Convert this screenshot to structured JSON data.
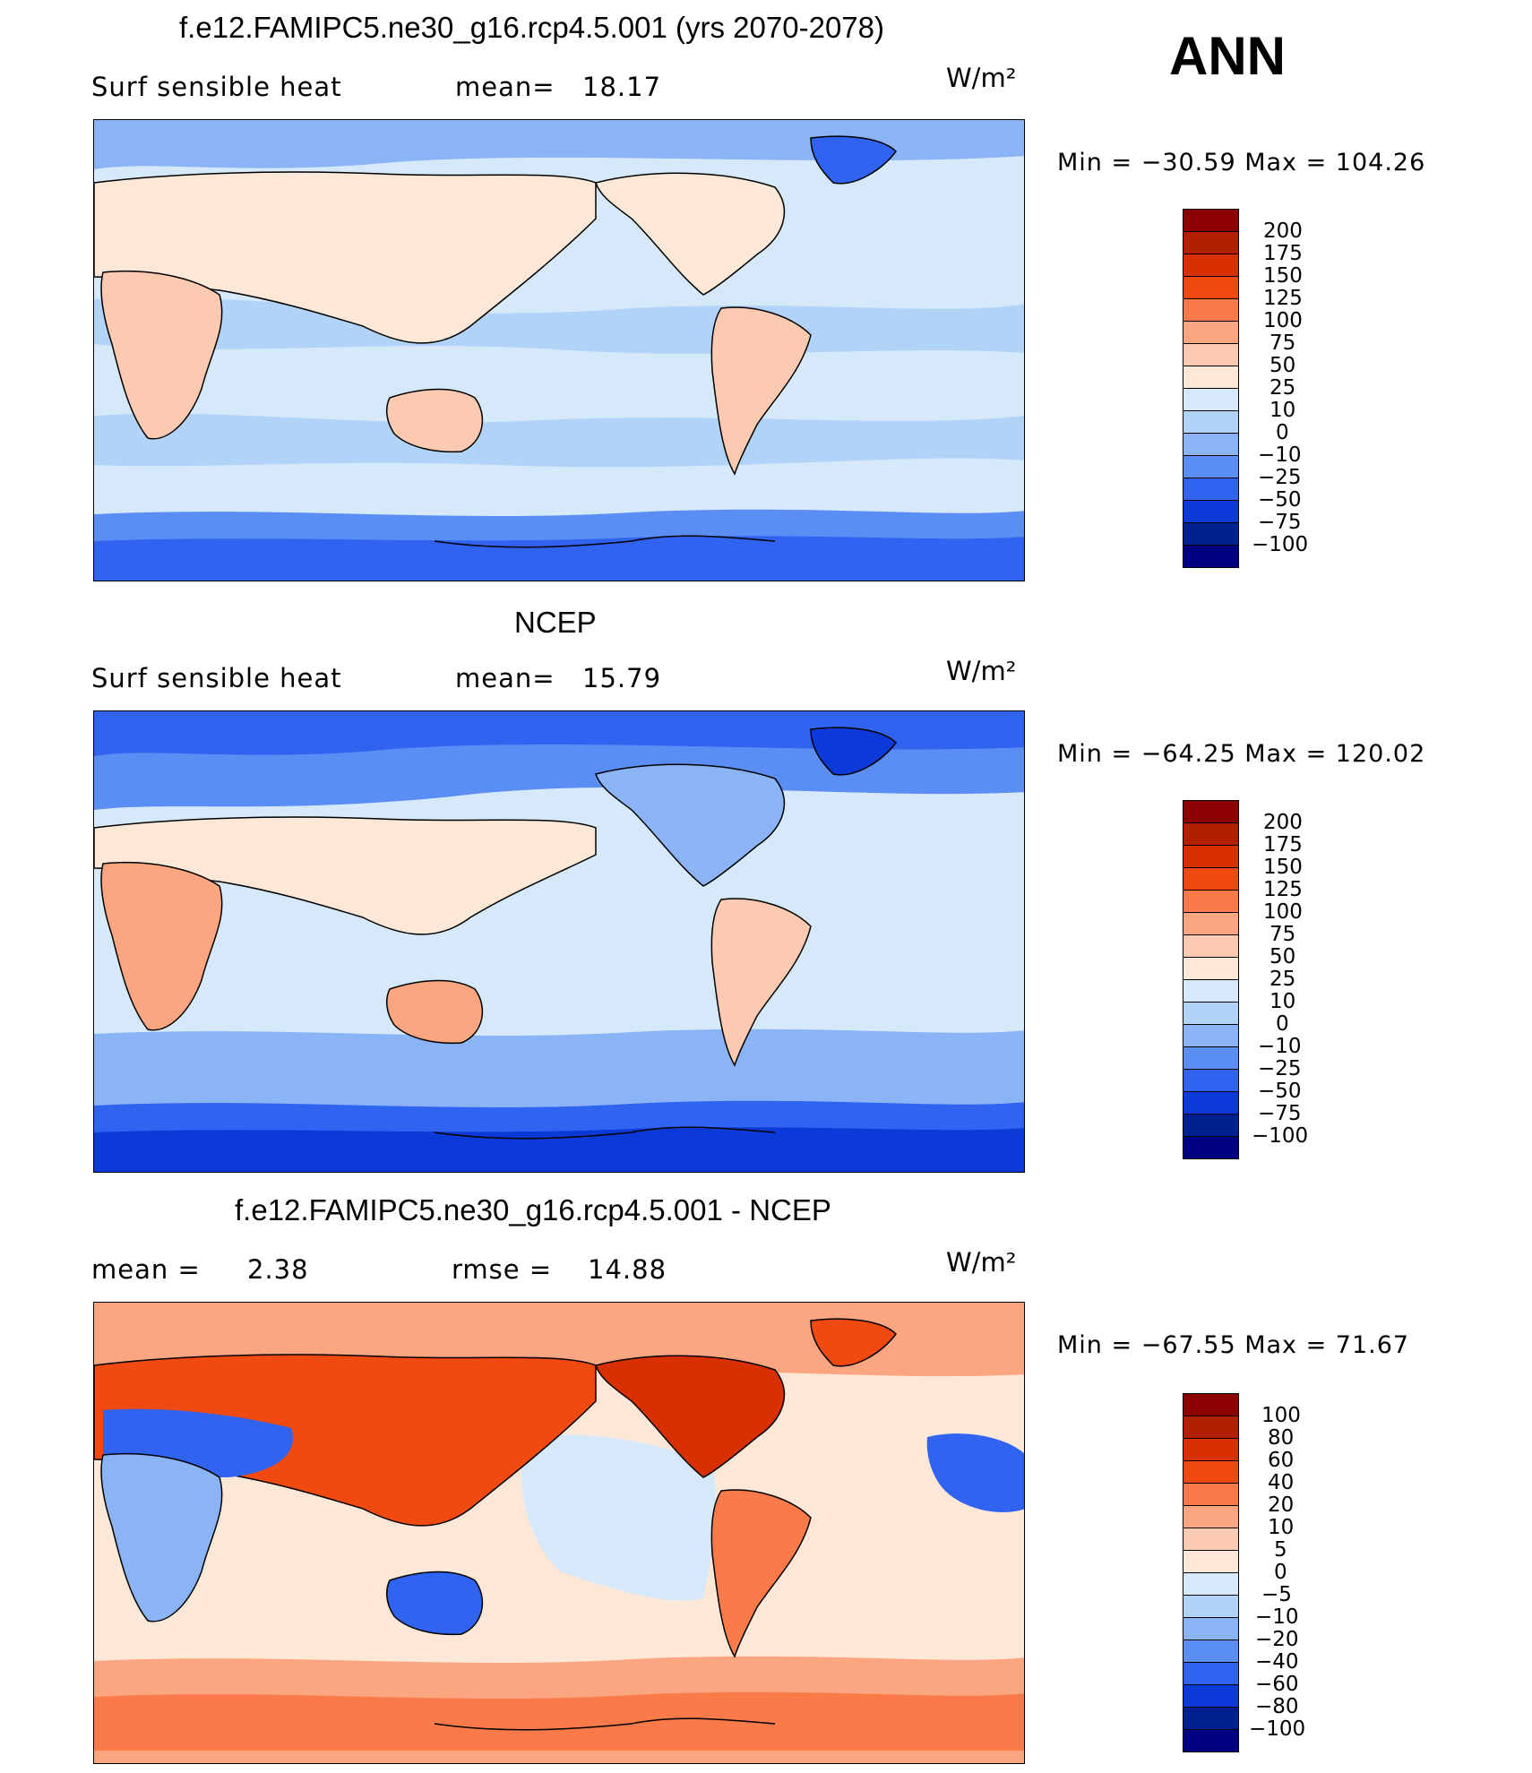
{
  "season": "ANN",
  "units_display": "W/m²",
  "panels": [
    {
      "title": "f.e12.FAMIPC5.ne30_g16.rcp4.5.001 (yrs 2070-2078)",
      "left_label": "Surf  sensible  heat",
      "stat_label": "mean=",
      "stat_value": "18.17",
      "minmax": "Min  =  −30.59  Max  =  104.26",
      "colorbar_labels": [
        "200",
        "175",
        "150",
        "125",
        "100",
        "75",
        "50",
        "25",
        "10",
        "0",
        "−10",
        "−25",
        "−50",
        "−75",
        "−100"
      ],
      "colors": [
        "#8b0000",
        "#b22000",
        "#d83000",
        "#f04a10",
        "#fa7a4a",
        "#fba680",
        "#fccab0",
        "#fde8d8",
        "#d6e9fb",
        "#b2d3f8",
        "#8ab4f6",
        "#5a8ef5",
        "#2f63f0",
        "#0c3ad8",
        "#00208f",
        "#000080"
      ]
    },
    {
      "title": "NCEP",
      "left_label": "Surf  sensible  heat",
      "stat_label": "mean=",
      "stat_value": "15.79",
      "minmax": "Min  =  −64.25  Max  =  120.02",
      "colorbar_labels": [
        "200",
        "175",
        "150",
        "125",
        "100",
        "75",
        "50",
        "25",
        "10",
        "0",
        "−10",
        "−25",
        "−50",
        "−75",
        "−100"
      ],
      "colors": [
        "#8b0000",
        "#b22000",
        "#d83000",
        "#f04a10",
        "#fa7a4a",
        "#fba680",
        "#fccab0",
        "#fde8d8",
        "#d6e9fb",
        "#b2d3f8",
        "#8ab4f6",
        "#5a8ef5",
        "#2f63f0",
        "#0c3ad8",
        "#00208f",
        "#000080"
      ]
    },
    {
      "title": "f.e12.FAMIPC5.ne30_g16.rcp4.5.001 - NCEP",
      "left_label": "mean  =",
      "left_value": "2.38",
      "stat_label": "rmse  =",
      "stat_value": "14.88",
      "minmax": "Min  =  −67.55  Max  =   71.67",
      "colorbar_labels": [
        "100",
        "80",
        "60",
        "40",
        "20",
        "10",
        "5",
        "0",
        "−5",
        "−10",
        "−20",
        "−40",
        "−60",
        "−80",
        "−100"
      ],
      "colors": [
        "#8b0000",
        "#b22000",
        "#d83000",
        "#f04a10",
        "#fa7a4a",
        "#fba680",
        "#fccab0",
        "#fde8d8",
        "#d6e9fb",
        "#b2d3f8",
        "#8ab4f6",
        "#5a8ef5",
        "#2f63f0",
        "#0c3ad8",
        "#00208f",
        "#000080"
      ]
    }
  ]
}
